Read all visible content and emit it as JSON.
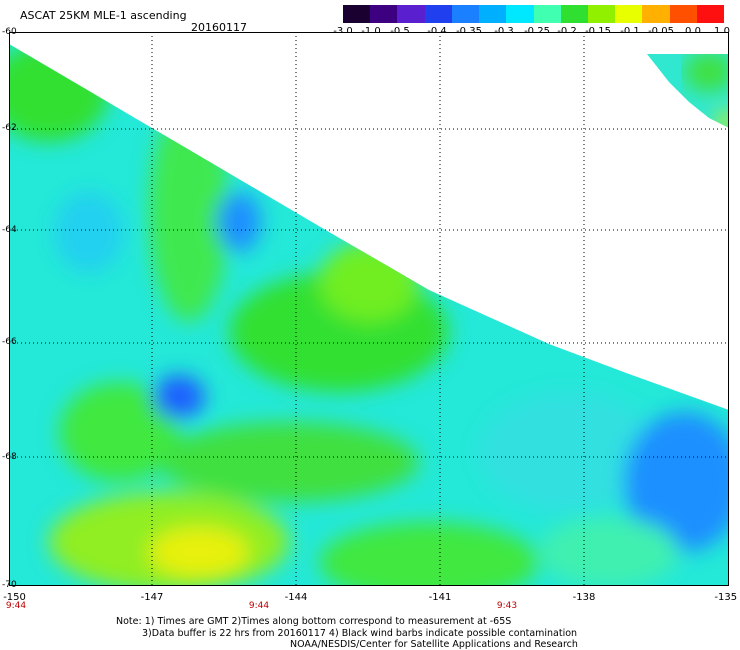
{
  "header": {
    "title": "ASCAT 25KM MLE-1 ascending",
    "date": "20160117"
  },
  "colorbar": {
    "labels": [
      "-3.0",
      "-1.0",
      "-0.5",
      "-0.4",
      "-0.35",
      "-0.3",
      "-0.25",
      "-0.2",
      "-0.15",
      "-0.1",
      "-0.05",
      "0.0",
      "1.0"
    ],
    "colors": [
      "#1a0030",
      "#3c0080",
      "#5a20d0",
      "#2040f0",
      "#1a80ff",
      "#00b0ff",
      "#00e8ff",
      "#40ffb0",
      "#30e030",
      "#90f000",
      "#e8ff00",
      "#ffb000",
      "#ff5000",
      "#ff1010"
    ]
  },
  "axes": {
    "lat_labels": [
      "-60",
      "-62",
      "-64",
      "-66",
      "-68",
      "-70"
    ],
    "lon_labels": [
      "-150",
      "-147",
      "-144",
      "-141",
      "-138",
      "-135"
    ],
    "time_labels": [
      "9:44",
      "9:44",
      "9:43"
    ]
  },
  "notes": {
    "line1": "Note: 1) Times are GMT 2)Times along bottom correspond to measurement at -65S",
    "line2": "3)Data buffer is 22 hrs from 20160117 4) Black wind barbs indicate possible contamination",
    "line3": "NOAA/NESDIS/Center for Satellite Applications and Research"
  }
}
